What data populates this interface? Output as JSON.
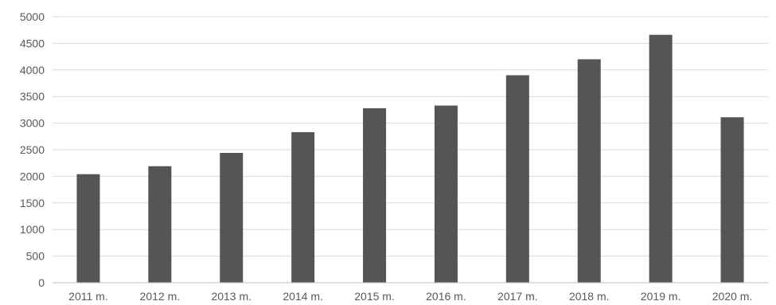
{
  "chart_data": {
    "type": "bar",
    "title": "",
    "xlabel": "",
    "ylabel": "",
    "categories": [
      "2011 m.",
      "2012 m.",
      "2013 m.",
      "2014 m.",
      "2015 m.",
      "2016 m.",
      "2017 m.",
      "2018 m.",
      "2019 m.",
      "2020 m."
    ],
    "values": [
      2040,
      2190,
      2440,
      2830,
      3280,
      3330,
      3900,
      4200,
      4660,
      3110
    ],
    "ylim": [
      0,
      5000
    ],
    "yticks": [
      0,
      500,
      1000,
      1500,
      2000,
      2500,
      3000,
      3500,
      4000,
      4500,
      5000
    ],
    "grid": true,
    "legend": "none",
    "colors": {
      "bar": "#555555",
      "grid": "#d9d9d9",
      "axis": "#bfbfbf",
      "text": "#595959"
    }
  }
}
